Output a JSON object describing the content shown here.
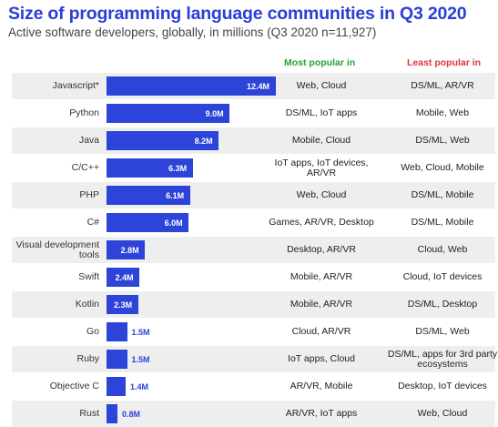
{
  "chart_data": {
    "type": "bar",
    "orientation": "horizontal",
    "title": "Size of programming language communities in Q3 2020",
    "subtitle": "Active software developers, globally, in millions (Q3 2020 n=11,927)",
    "value_unit": "M",
    "xlim": [
      0,
      12.4
    ],
    "columns": {
      "most": "Most popular in",
      "least": "Least popular in"
    },
    "categories": [
      "Javascript*",
      "Python",
      "Java",
      "C/C++",
      "PHP",
      "C#",
      "Visual development tools",
      "Swift",
      "Kotlin",
      "Go",
      "Ruby",
      "Objective C",
      "Rust"
    ],
    "values": [
      12.4,
      9.0,
      8.2,
      6.3,
      6.1,
      6.0,
      2.8,
      2.4,
      2.3,
      1.5,
      1.5,
      1.4,
      0.8
    ],
    "value_labels": [
      "12.4M",
      "9.0M",
      "8.2M",
      "6.3M",
      "6.1M",
      "6.0M",
      "2.8M",
      "2.4M",
      "2.3M",
      "1.5M",
      "1.5M",
      "1.4M",
      "0.8M"
    ],
    "most_popular_in": [
      "Web, Cloud",
      "DS/ML, IoT apps",
      "Mobile, Cloud",
      "IoT apps, IoT devices, AR/VR",
      "Web, Cloud",
      "Games, AR/VR, Desktop",
      "Desktop, AR/VR",
      "Mobile, AR/VR",
      "Mobile, AR/VR",
      "Cloud, AR/VR",
      "IoT apps, Cloud",
      "AR/VR, Mobile",
      "AR/VR, IoT apps"
    ],
    "least_popular_in": [
      "DS/ML, AR/VR",
      "Mobile, Web",
      "DS/ML, Web",
      "Web, Cloud, Mobile",
      "DS/ML, Mobile",
      "DS/ML, Mobile",
      "Cloud, Web",
      "Cloud, IoT devices",
      "DS/ML, Desktop",
      "DS/ML, Web",
      "DS/ML, apps for 3rd party ecosystems",
      "Desktop, IoT devices",
      "Web, Cloud"
    ],
    "colors": {
      "bar": "#2c44d8",
      "title": "#2a3fd6",
      "most": "#22a33a",
      "least": "#e0343e",
      "row_shade": "#eeeeee"
    }
  }
}
